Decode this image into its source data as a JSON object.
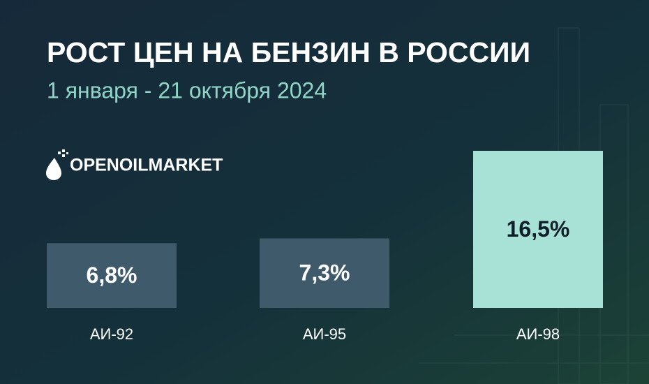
{
  "chart_data": {
    "type": "bar",
    "title": "РОСТ ЦЕН НА БЕНЗИН В РОССИИ",
    "subtitle": "1 января - 21 октября 2024",
    "logo": "OPENOILMARKET",
    "categories": [
      "АИ-92",
      "АИ-95",
      "АИ-98"
    ],
    "values": [
      6.8,
      7.3,
      16.5
    ],
    "value_labels": [
      "6,8%",
      "7,3%",
      "16,5%"
    ],
    "colors": [
      "#3f5b6b",
      "#3f5b6b",
      "#a8e2d6"
    ]
  }
}
